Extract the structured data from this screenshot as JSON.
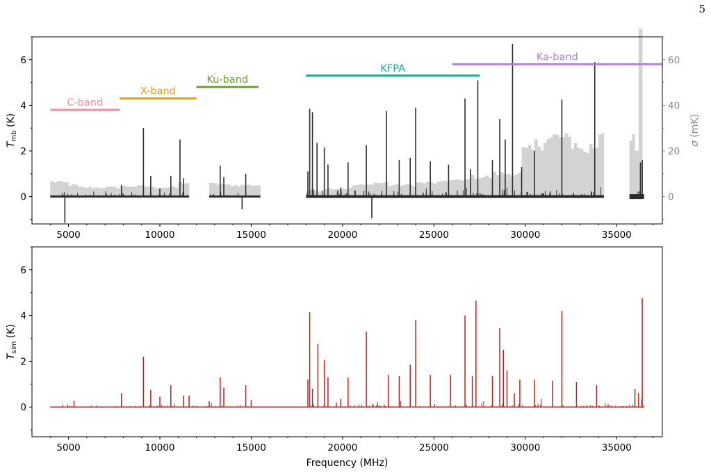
{
  "page_number": "5",
  "chart_data": [
    {
      "type": "line",
      "panel": "top",
      "ylabel_main": "T",
      "ylabel_sub": "mb",
      "ylabel_unit": "(K)",
      "y2label_main": "σ",
      "y2label_unit": "(mK)",
      "xlim": [
        3000,
        37500
      ],
      "ylim": [
        -1.2,
        7.0
      ],
      "y2lim": [
        -12,
        70
      ],
      "x_ticks": [
        5000,
        10000,
        15000,
        20000,
        25000,
        30000,
        35000
      ],
      "y_ticks": [
        0,
        2,
        4,
        6
      ],
      "y2_ticks": [
        0,
        20,
        40,
        60
      ],
      "bands": [
        {
          "label": "C-band",
          "x": [
            4000,
            7800
          ],
          "y": 3.8,
          "color": "#f08ca0"
        },
        {
          "label": "X-band",
          "x": [
            7800,
            12000
          ],
          "y": 4.3,
          "color": "#e5a012"
        },
        {
          "label": "Ku-band",
          "x": [
            12000,
            15400
          ],
          "y": 4.8,
          "color": "#6e9a38"
        },
        {
          "label": "KFPA",
          "x": [
            18000,
            27500
          ],
          "y": 5.3,
          "color": "#14a79b"
        },
        {
          "label": "Ka-band",
          "x": [
            26000,
            37500
          ],
          "y": 5.8,
          "color": "#b57de5"
        }
      ],
      "segments": [
        [
          4000,
          11600
        ],
        [
          12700,
          15500
        ],
        [
          18000,
          34300
        ],
        [
          35700,
          36500
        ]
      ],
      "noise_sigma_mK": [
        {
          "x": [
            4000,
            4500
          ],
          "v": 6.5
        },
        {
          "x": [
            4500,
            5000
          ],
          "v": 6
        },
        {
          "x": [
            5000,
            5500
          ],
          "v": 5
        },
        {
          "x": [
            5500,
            7800
          ],
          "v": 4
        },
        {
          "x": [
            7800,
            9500
          ],
          "v": 4.5
        },
        {
          "x": [
            9500,
            11000
          ],
          "v": 4
        },
        {
          "x": [
            11000,
            11600
          ],
          "v": 6
        },
        {
          "x": [
            12700,
            13500
          ],
          "v": 5.5
        },
        {
          "x": [
            13500,
            15500
          ],
          "v": 5
        },
        {
          "x": [
            18000,
            19000
          ],
          "v": 2.5
        },
        {
          "x": [
            19000,
            20500
          ],
          "v": 3.5
        },
        {
          "x": [
            20500,
            21500
          ],
          "v": 5
        },
        {
          "x": [
            21500,
            22500
          ],
          "v": 6
        },
        {
          "x": [
            22500,
            24000
          ],
          "v": 5
        },
        {
          "x": [
            24000,
            25500
          ],
          "v": 6
        },
        {
          "x": [
            25500,
            26800
          ],
          "v": 7
        },
        {
          "x": [
            26800,
            28200
          ],
          "v": 8.5
        },
        {
          "x": [
            28200,
            29800
          ],
          "v": 10
        },
        {
          "x": [
            29800,
            30500
          ],
          "v": 20
        },
        {
          "x": [
            30500,
            31000
          ],
          "v": 23
        },
        {
          "x": [
            31000,
            31500
          ],
          "v": 25
        },
        {
          "x": [
            31500,
            32000
          ],
          "v": 26
        },
        {
          "x": [
            32000,
            32500
          ],
          "v": 25
        },
        {
          "x": [
            32500,
            33000
          ],
          "v": 23
        },
        {
          "x": [
            33000,
            33500
          ],
          "v": 20
        },
        {
          "x": [
            33500,
            34000
          ],
          "v": 22
        },
        {
          "x": [
            34000,
            34300
          ],
          "v": 29
        },
        {
          "x": [
            35700,
            36000
          ],
          "v": 27
        },
        {
          "x": [
            36000,
            36200
          ],
          "v": 18
        },
        {
          "x": [
            36200,
            36400
          ],
          "v": 70
        }
      ],
      "lines": [
        {
          "x": 4800,
          "v": -1.15
        },
        {
          "x": 7900,
          "v": 0.5
        },
        {
          "x": 9100,
          "v": 3.0
        },
        {
          "x": 9500,
          "v": 0.9
        },
        {
          "x": 10000,
          "v": 0.35
        },
        {
          "x": 10600,
          "v": 0.9
        },
        {
          "x": 11100,
          "v": 2.5
        },
        {
          "x": 11300,
          "v": 0.8
        },
        {
          "x": 13300,
          "v": 1.35
        },
        {
          "x": 13500,
          "v": 0.85
        },
        {
          "x": 14500,
          "v": -0.55
        },
        {
          "x": 14700,
          "v": 1.0
        },
        {
          "x": 18100,
          "v": 1.1
        },
        {
          "x": 18200,
          "v": 3.85
        },
        {
          "x": 18350,
          "v": 3.7
        },
        {
          "x": 18600,
          "v": 2.35
        },
        {
          "x": 19000,
          "v": 2.15
        },
        {
          "x": 19200,
          "v": 1.4
        },
        {
          "x": 19900,
          "v": 0.4
        },
        {
          "x": 20300,
          "v": 1.5
        },
        {
          "x": 21300,
          "v": 2.25
        },
        {
          "x": 21600,
          "v": -0.95
        },
        {
          "x": 22400,
          "v": 3.75
        },
        {
          "x": 23100,
          "v": 1.6
        },
        {
          "x": 23700,
          "v": 1.7
        },
        {
          "x": 24000,
          "v": 3.9
        },
        {
          "x": 24800,
          "v": 1.55
        },
        {
          "x": 25800,
          "v": 1.4
        },
        {
          "x": 26700,
          "v": 4.3
        },
        {
          "x": 27000,
          "v": 1.2
        },
        {
          "x": 27400,
          "v": 5.1
        },
        {
          "x": 28200,
          "v": 1.6
        },
        {
          "x": 28600,
          "v": 3.4
        },
        {
          "x": 28900,
          "v": 2.5
        },
        {
          "x": 29300,
          "v": 6.7
        },
        {
          "x": 29800,
          "v": 1.3
        },
        {
          "x": 30500,
          "v": 2.0
        },
        {
          "x": 32000,
          "v": 4.25
        },
        {
          "x": 33800,
          "v": 5.9
        },
        {
          "x": 36300,
          "v": 1.5
        },
        {
          "x": 36400,
          "v": 1.6
        }
      ]
    },
    {
      "type": "line",
      "panel": "bottom",
      "xlabel": "Frequency (MHz)",
      "ylabel_main": "T",
      "ylabel_sub": "sim",
      "ylabel_unit": "(K)",
      "xlim": [
        3000,
        37500
      ],
      "ylim": [
        -1.3,
        7.0
      ],
      "x_ticks": [
        5000,
        10000,
        15000,
        20000,
        25000,
        30000,
        35000
      ],
      "y_ticks": [
        0,
        2,
        4,
        6
      ],
      "series_color": "#b22222",
      "x_range": [
        4000,
        36500
      ],
      "lines": [
        {
          "x": 5300,
          "v": 0.28
        },
        {
          "x": 7900,
          "v": 0.6
        },
        {
          "x": 9100,
          "v": 2.2
        },
        {
          "x": 9500,
          "v": 0.75
        },
        {
          "x": 10000,
          "v": 0.45
        },
        {
          "x": 10600,
          "v": 0.95
        },
        {
          "x": 11300,
          "v": 0.5
        },
        {
          "x": 11600,
          "v": 0.5
        },
        {
          "x": 12700,
          "v": 0.25
        },
        {
          "x": 13300,
          "v": 1.3
        },
        {
          "x": 13500,
          "v": 0.85
        },
        {
          "x": 14700,
          "v": 0.95
        },
        {
          "x": 15000,
          "v": 0.3
        },
        {
          "x": 18100,
          "v": 1.2
        },
        {
          "x": 18200,
          "v": 4.15
        },
        {
          "x": 18350,
          "v": 0.8
        },
        {
          "x": 18650,
          "v": 2.75
        },
        {
          "x": 19000,
          "v": 2.05
        },
        {
          "x": 19200,
          "v": 1.3
        },
        {
          "x": 19900,
          "v": 0.35
        },
        {
          "x": 20300,
          "v": 1.3
        },
        {
          "x": 21300,
          "v": 3.3
        },
        {
          "x": 22500,
          "v": 1.4
        },
        {
          "x": 23100,
          "v": 1.35
        },
        {
          "x": 23700,
          "v": 1.85
        },
        {
          "x": 24000,
          "v": 3.8
        },
        {
          "x": 24800,
          "v": 1.4
        },
        {
          "x": 25900,
          "v": 1.4
        },
        {
          "x": 26700,
          "v": 4.0
        },
        {
          "x": 27100,
          "v": 1.35
        },
        {
          "x": 27300,
          "v": 4.65
        },
        {
          "x": 28200,
          "v": 1.35
        },
        {
          "x": 28600,
          "v": 3.45
        },
        {
          "x": 28800,
          "v": 2.5
        },
        {
          "x": 29000,
          "v": 1.6
        },
        {
          "x": 29400,
          "v": 0.6
        },
        {
          "x": 29700,
          "v": 1.2
        },
        {
          "x": 30500,
          "v": 1.2
        },
        {
          "x": 31500,
          "v": 1.15
        },
        {
          "x": 32000,
          "v": 4.2
        },
        {
          "x": 32800,
          "v": 1.1
        },
        {
          "x": 33900,
          "v": 0.95
        },
        {
          "x": 36000,
          "v": 0.8
        },
        {
          "x": 36200,
          "v": 0.6
        },
        {
          "x": 36400,
          "v": 4.75
        }
      ]
    }
  ]
}
